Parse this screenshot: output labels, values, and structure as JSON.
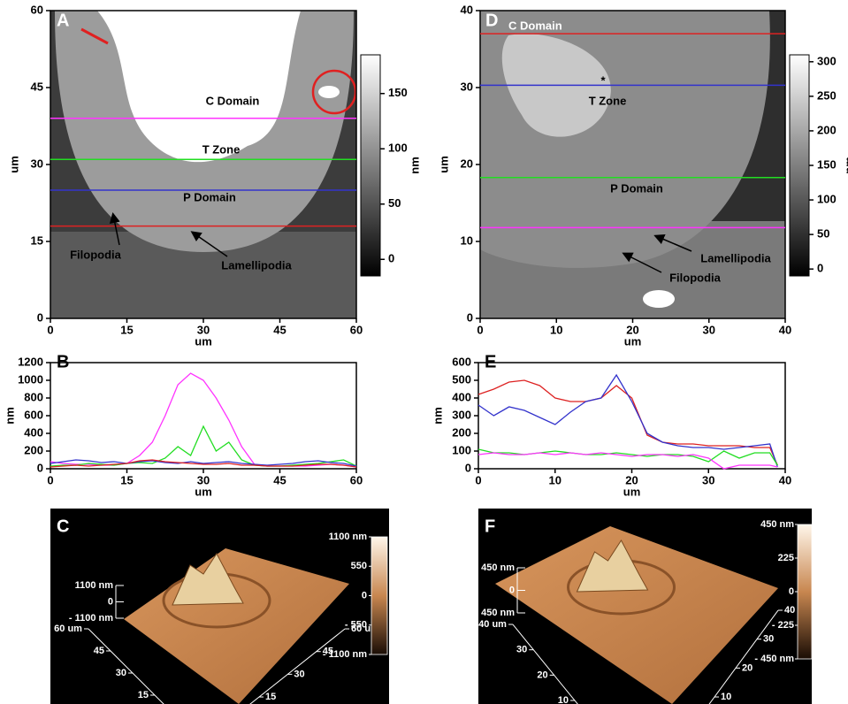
{
  "chart_data": [
    {
      "type": "image",
      "panel_label": "A",
      "xlim": [
        0,
        60
      ],
      "ylim": [
        0,
        60
      ],
      "xticks": [
        0,
        15,
        30,
        45,
        60
      ],
      "yticks": [
        0,
        15,
        30,
        45,
        60
      ],
      "xlabel": "um",
      "ylabel": "um",
      "guides": [
        {
          "color": "#ff33ff",
          "value": 39
        },
        {
          "color": "#22dd22",
          "value": 31
        },
        {
          "color": "#3333cc",
          "value": 25
        },
        {
          "color": "#dd2222",
          "value": 18
        }
      ],
      "colorbar": {
        "lim": [
          -15,
          185
        ],
        "ticks": [
          0,
          50,
          100,
          150
        ],
        "label": "nm"
      },
      "annotations": [
        "C Domain",
        "T Zone",
        "P Domain",
        "Filopodia",
        "Lamellipodia"
      ]
    },
    {
      "type": "line",
      "panel_label": "B",
      "xlim": [
        0,
        60
      ],
      "ylim": [
        0,
        1200
      ],
      "xticks": [
        0,
        15,
        30,
        45,
        60
      ],
      "yticks": [
        0,
        200,
        400,
        600,
        800,
        1000,
        1200
      ],
      "xlabel": "um",
      "ylabel": "nm",
      "x": [
        0,
        2.5,
        5,
        7.5,
        10,
        12.5,
        15,
        17.5,
        20,
        22.5,
        25,
        27.5,
        30,
        32.5,
        35,
        37.5,
        40,
        42.5,
        45,
        47.5,
        50,
        52.5,
        55,
        57.5,
        60
      ],
      "series": [
        {
          "color": "#ff33ff",
          "values": [
            80,
            60,
            50,
            50,
            40,
            40,
            60,
            150,
            300,
            600,
            950,
            1080,
            1000,
            800,
            550,
            250,
            50,
            30,
            30,
            30,
            30,
            40,
            50,
            40,
            20
          ]
        },
        {
          "color": "#22dd22",
          "values": [
            30,
            40,
            40,
            60,
            50,
            40,
            60,
            70,
            60,
            120,
            250,
            150,
            480,
            200,
            300,
            100,
            40,
            30,
            30,
            40,
            50,
            60,
            80,
            100,
            30
          ]
        },
        {
          "color": "#3333cc",
          "values": [
            60,
            80,
            100,
            90,
            70,
            80,
            60,
            80,
            90,
            70,
            60,
            80,
            60,
            70,
            80,
            60,
            50,
            40,
            50,
            60,
            80,
            90,
            70,
            60,
            30
          ]
        },
        {
          "color": "#dd2222",
          "values": [
            20,
            30,
            40,
            30,
            40,
            50,
            60,
            90,
            100,
            80,
            70,
            60,
            50,
            50,
            60,
            40,
            40,
            30,
            30,
            30,
            40,
            50,
            50,
            40,
            20
          ]
        }
      ]
    },
    {
      "type": "surface",
      "panel_label": "C",
      "zticks": [
        {
          "value": 1100,
          "label": "1100 nm"
        },
        0,
        {
          "value": -1100,
          "label": "- 1100 nm"
        }
      ],
      "left_ticks": [
        {
          "value": 60,
          "label": "60 um"
        },
        45,
        30,
        15
      ],
      "right_ticks": [
        {
          "value": 60,
          "label": "60 um"
        },
        45,
        30,
        15
      ],
      "colorbar": {
        "ticks": [
          {
            "value": 1100,
            "label": "1100 nm"
          },
          550,
          0,
          {
            "value": -550,
            "label": "- 550"
          },
          {
            "value": -1100,
            "label": "- 1100 nm"
          }
        ]
      }
    },
    {
      "type": "image",
      "panel_label": "D",
      "xlim": [
        0,
        40
      ],
      "ylim": [
        0,
        40
      ],
      "xticks": [
        0,
        10,
        20,
        30,
        40
      ],
      "yticks": [
        0,
        10,
        20,
        30,
        40
      ],
      "xlabel": "um",
      "ylabel": "um",
      "guides": [
        {
          "color": "#dd2222",
          "value": 37
        },
        {
          "color": "#3333cc",
          "value": 30.3
        },
        {
          "color": "#22dd22",
          "value": 18.3
        },
        {
          "color": "#ff33ff",
          "value": 11.8
        }
      ],
      "colorbar": {
        "lim": [
          -10,
          310
        ],
        "ticks": [
          0,
          50,
          100,
          150,
          200,
          250,
          300
        ],
        "label": "nm"
      },
      "annotations": [
        "C Domain",
        "T Zone",
        "P Domain",
        "Lamellipodia",
        "Filopodia"
      ]
    },
    {
      "type": "line",
      "panel_label": "E",
      "xlim": [
        0,
        40
      ],
      "ylim": [
        0,
        600
      ],
      "xticks": [
        0,
        10,
        20,
        30,
        40
      ],
      "yticks": [
        0,
        100,
        200,
        300,
        400,
        500,
        600
      ],
      "xlabel": "um",
      "ylabel": "nm",
      "x": [
        0,
        2,
        4,
        6,
        8,
        10,
        12,
        14,
        16,
        18,
        20,
        22,
        24,
        26,
        28,
        30,
        32,
        34,
        36,
        38,
        39
      ],
      "series": [
        {
          "color": "#dd2222",
          "values": [
            420,
            450,
            490,
            500,
            470,
            400,
            380,
            380,
            400,
            470,
            400,
            190,
            150,
            140,
            140,
            130,
            130,
            130,
            120,
            120,
            20
          ]
        },
        {
          "color": "#3333cc",
          "values": [
            360,
            300,
            350,
            330,
            290,
            250,
            320,
            380,
            400,
            530,
            380,
            200,
            150,
            130,
            120,
            120,
            110,
            120,
            130,
            140,
            10
          ]
        },
        {
          "color": "#22dd22",
          "values": [
            110,
            90,
            90,
            80,
            90,
            100,
            90,
            80,
            80,
            90,
            80,
            70,
            80,
            80,
            70,
            40,
            100,
            60,
            90,
            90,
            20
          ]
        },
        {
          "color": "#ff33ff",
          "values": [
            80,
            90,
            80,
            80,
            90,
            80,
            90,
            80,
            90,
            80,
            70,
            80,
            80,
            70,
            80,
            60,
            0,
            20,
            20,
            20,
            10
          ]
        }
      ]
    },
    {
      "type": "surface",
      "panel_label": "F",
      "zticks": [
        {
          "value": 450,
          "label": "450 nm"
        },
        0,
        {
          "value": -450,
          "label": "- 450 nm"
        }
      ],
      "left_ticks": [
        {
          "value": 40,
          "label": "40 um"
        },
        30,
        20,
        10
      ],
      "right_ticks": [
        {
          "value": 40,
          "label": "40 um"
        },
        30,
        20,
        10
      ],
      "colorbar": {
        "ticks": [
          {
            "value": 450,
            "label": "450 nm"
          },
          225,
          0,
          {
            "value": -225,
            "label": "- 225"
          },
          {
            "value": -450,
            "label": "- 450 nm"
          }
        ]
      }
    }
  ]
}
